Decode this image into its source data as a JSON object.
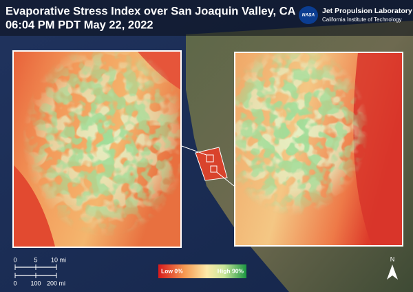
{
  "header": {
    "title": "Evaporative Stress Index over San Joaquin Valley, CA",
    "subtitle": "06:04 PM PDT May 22, 2022"
  },
  "logo": {
    "agency": "NASA",
    "name": "Jet Propulsion Laboratory",
    "institution": "California Institute of Technology"
  },
  "scale_bar": {
    "small": [
      "0",
      "5",
      "10 mi"
    ],
    "large": [
      "0",
      "100",
      "200 mi"
    ]
  },
  "legend": {
    "low": "Low 0%",
    "high": "High 90%"
  },
  "north_arrow": "N"
}
